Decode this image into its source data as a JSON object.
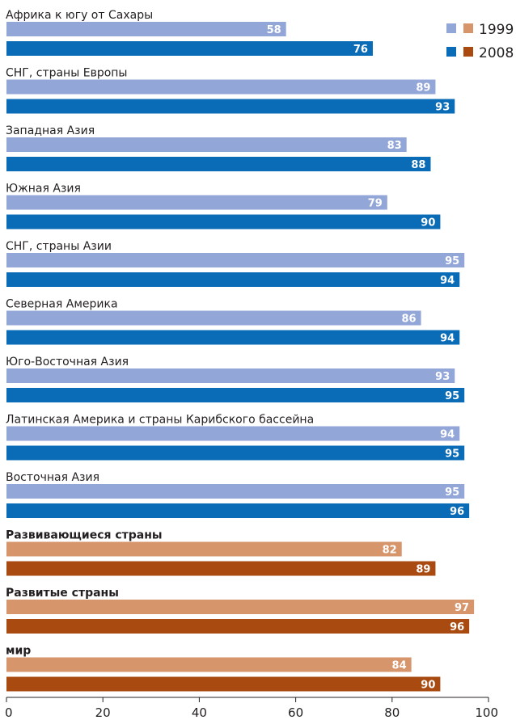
{
  "chart_data": {
    "type": "bar",
    "orientation": "horizontal",
    "categories": [
      "Африка к югу от Сахары",
      "СНГ, страны Европы",
      "Западная Азия",
      "Южная Азия",
      "СНГ, страны Азии",
      "Северная Америка",
      "Юго-Восточная Азия",
      "Латинская Америка и страны Карибского бассейна",
      "Восточная Азия",
      "Развивающиеся страны",
      "Развитые страны",
      "мир"
    ],
    "aggregate_categories": [
      "Развивающиеся страны",
      "Развитые страны",
      "мир"
    ],
    "series": [
      {
        "name": "1999",
        "values": [
          58,
          89,
          83,
          79,
          95,
          86,
          93,
          94,
          95,
          82,
          97,
          84
        ]
      },
      {
        "name": "2008",
        "values": [
          76,
          93,
          88,
          90,
          94,
          94,
          95,
          95,
          96,
          89,
          96,
          90
        ]
      }
    ],
    "xlim": [
      0,
      100
    ],
    "xticks": [
      "0",
      "20",
      "40",
      "60",
      "80",
      "100"
    ],
    "legend_position": "top-right",
    "grid": false
  },
  "colors": {
    "regional_1999": "#93a6d8",
    "regional_2008": "#0a6bb7",
    "aggregate_1999": "#d7956b",
    "aggregate_2008": "#a94b10",
    "axis": "#231f20"
  }
}
